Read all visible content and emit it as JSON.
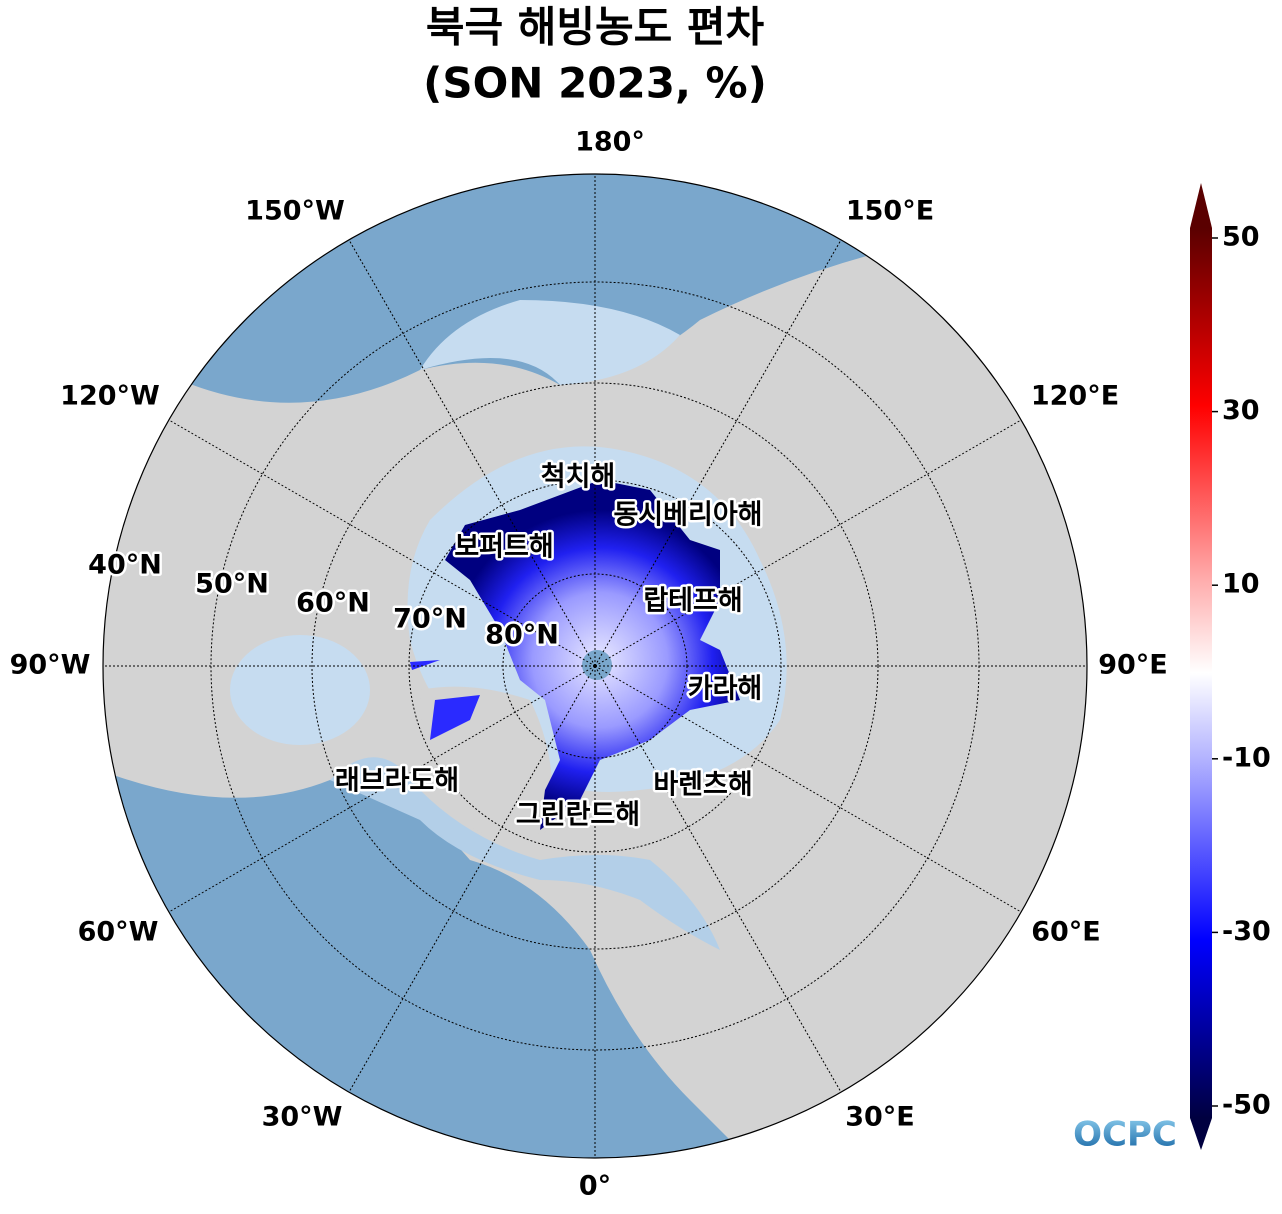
{
  "title": [
    "북극 해빙농도 편차",
    "(SON 2023, %)"
  ],
  "longitude_labels": [
    "180°",
    "150°W",
    "120°W",
    "90°W",
    "60°W",
    "30°W",
    "0°",
    "30°E",
    "60°E",
    "90°E",
    "120°E",
    "150°E"
  ],
  "latitude_labels": [
    "80°N",
    "70°N",
    "60°N",
    "50°N",
    "40°N"
  ],
  "sea_names": [
    "척치해",
    "동시베리아해",
    "보퍼트해",
    "랍테프해",
    "카라해",
    "바렌츠해",
    "그린란드해",
    "래브라도해"
  ],
  "colorbar": {
    "ticks": [
      50,
      30,
      10,
      -10,
      -30,
      -50
    ],
    "lim": [
      -50,
      50
    ]
  },
  "logo": "OCPC"
}
